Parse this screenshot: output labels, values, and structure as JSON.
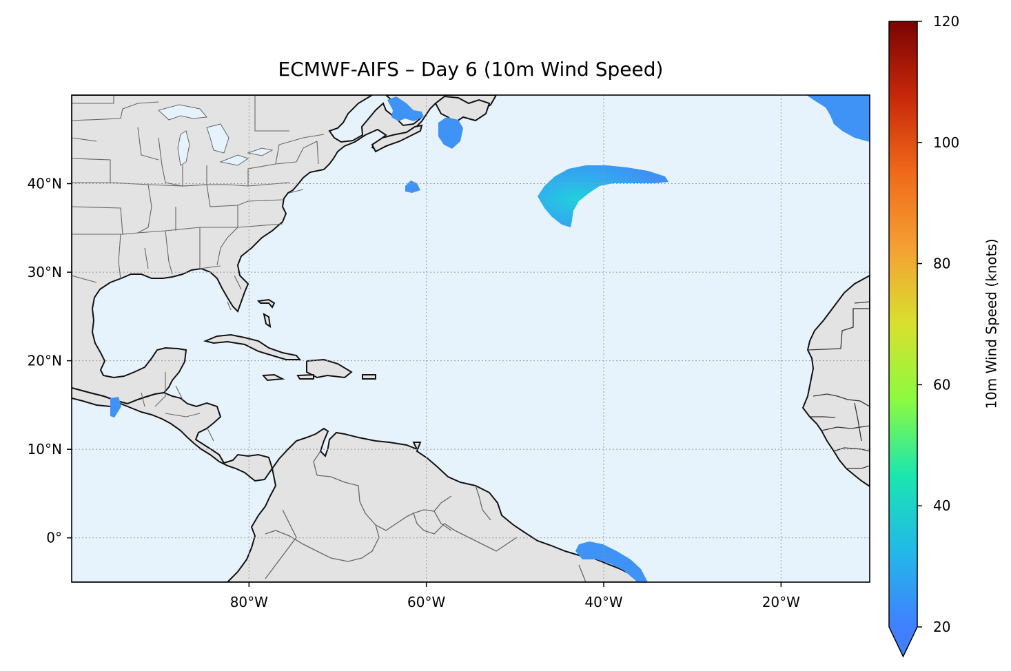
{
  "title": "ECMWF-AIFS – Day 6 (10m Wind Speed)",
  "map": {
    "extent": {
      "lon": [
        -100,
        -10
      ],
      "lat": [
        -5,
        50
      ]
    },
    "x_ticks": [
      {
        "lon": -80,
        "label": "80°W"
      },
      {
        "lon": -60,
        "label": "60°W"
      },
      {
        "lon": -40,
        "label": "40°W"
      },
      {
        "lon": -20,
        "label": "20°W"
      }
    ],
    "y_ticks": [
      {
        "lat": 40,
        "label": "40°N"
      },
      {
        "lat": 30,
        "label": "30°N"
      },
      {
        "lat": 20,
        "label": "20°N"
      },
      {
        "lat": 10,
        "label": "10°N"
      },
      {
        "lat": 0,
        "label": "0°"
      }
    ],
    "gridlines": true,
    "colors": {
      "ocean": "#e6f3fc",
      "land": "#e3e3e3",
      "coast": "#111111",
      "border": "#666666",
      "lakes": "#e6f3fc"
    },
    "wind_regions": [
      {
        "name": "Mid-Atlantic jet streak",
        "color_stops": [
          "#3f8ff7",
          "#22cde0",
          "#3aa0f5"
        ]
      },
      {
        "name": "Northeast corner",
        "color": "#3f93f6"
      },
      {
        "name": "Gulf of St. Lawrence",
        "color": "#3f93f6"
      },
      {
        "name": "Off Newfoundland",
        "color": "#3f93f6"
      },
      {
        "name": "Off Nova Scotia",
        "color": "#3f93f6"
      },
      {
        "name": "Equatorial near Brazil",
        "color": "#3f93f6"
      },
      {
        "name": "Gulf of Tehuantepec",
        "color": "#3f93f6"
      }
    ]
  },
  "chart_data": {
    "type": "heatmap",
    "title": "ECMWF-AIFS – Day 6 (10m Wind Speed)",
    "variable": "10m Wind Speed",
    "units": "knots",
    "xlim": [
      -100,
      -10
    ],
    "ylim": [
      -5,
      50
    ],
    "colorbar": {
      "label": "10m Wind Speed (knots)",
      "range": [
        20,
        120
      ],
      "ticks": [
        20,
        40,
        60,
        80,
        100,
        120
      ],
      "extend": "min",
      "colormap_stops": [
        "#4080ff",
        "#22b8e8",
        "#1ae6b0",
        "#8cfa40",
        "#d8e02e",
        "#f5a033",
        "#f06a1a",
        "#c8280a",
        "#7a0403"
      ]
    },
    "max_wind_visible_knots": 31
  }
}
